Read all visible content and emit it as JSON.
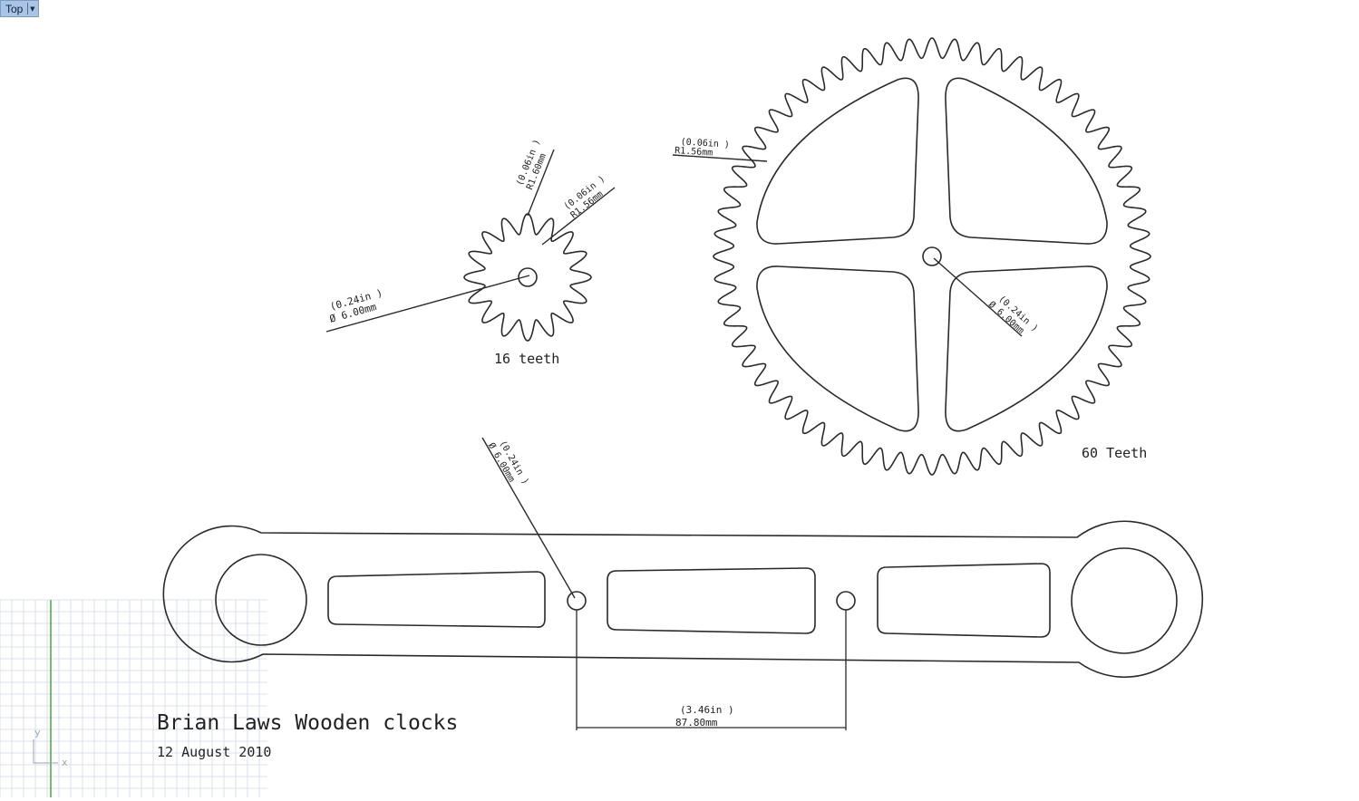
{
  "viewport": {
    "name": "Top",
    "menu_icon": "chevron-down-icon"
  },
  "axes": {
    "y_label": "y",
    "x_label": "x"
  },
  "gear_small": {
    "caption": "16 teeth",
    "bore_dim": [
      "(0.24in )",
      "Ø 6.00mm"
    ],
    "tip_dim": [
      "(0.06in )",
      "R1.60mm"
    ],
    "root_dim": [
      "(0.06in )",
      "R1.56mm"
    ]
  },
  "gear_large": {
    "caption": "60 Teeth",
    "root_dim": [
      "(0.06in )",
      "R1.56mm"
    ],
    "bore_dim": [
      "(0.24in )",
      "Ø 6.00mm"
    ]
  },
  "link_arm": {
    "bore_dim": [
      "(0.24in )",
      "Ø 6.00mm"
    ],
    "spacing_dim": [
      "(3.46in )",
      "87.80mm"
    ]
  },
  "title_block": {
    "title": "Brian Laws Wooden clocks",
    "date": "12 August 2010"
  },
  "colors": {
    "grid": "#cfd8e6",
    "y_axis": "#3aa33a",
    "line": "#2a2a2a",
    "tab_bg": "#a9c4e4"
  }
}
